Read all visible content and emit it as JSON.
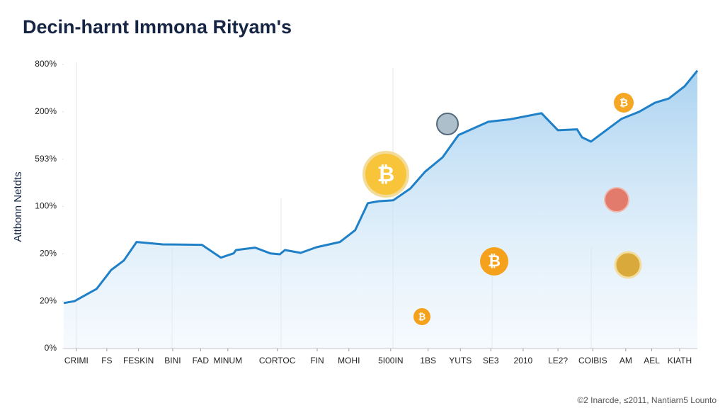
{
  "chart_data": {
    "type": "area",
    "title": "Decin-harnt Immona Rityam's",
    "y_label": "Attbonn Netdts",
    "footer": "©2 Inarcde, ≤2011, Nantiarn5 Lounto",
    "color": "#1f80c8",
    "xlim": [
      0,
      100
    ],
    "ylim": [
      0,
      6
    ],
    "xticks": [
      {
        "value": 2,
        "label": "CRIMI"
      },
      {
        "value": 6.8,
        "label": "FS"
      },
      {
        "value": 11.8,
        "label": "FESKIN"
      },
      {
        "value": 17.2,
        "label": "BINI"
      },
      {
        "value": 21.6,
        "label": "FAD"
      },
      {
        "value": 25.9,
        "label": "MINUM"
      },
      {
        "value": 33.7,
        "label": "CORTOC"
      },
      {
        "value": 40,
        "label": "FIN"
      },
      {
        "value": 45,
        "label": "MOHI"
      },
      {
        "value": 51.6,
        "label": "5I00IN"
      },
      {
        "value": 57.5,
        "label": "1BS"
      },
      {
        "value": 62.6,
        "label": "YUTS"
      },
      {
        "value": 67.4,
        "label": "SE3"
      },
      {
        "value": 72.5,
        "label": "2010"
      },
      {
        "value": 78,
        "label": "LE2?"
      },
      {
        "value": 83.5,
        "label": "COIBIS"
      },
      {
        "value": 88.7,
        "label": "AM"
      },
      {
        "value": 92.8,
        "label": "AEL"
      },
      {
        "value": 97.2,
        "label": "KIATH"
      }
    ],
    "yticks": [
      {
        "value": 0,
        "label": "0%"
      },
      {
        "value": 1,
        "label": "20%"
      },
      {
        "value": 2,
        "label": "20%"
      },
      {
        "value": 3,
        "label": "100%"
      },
      {
        "value": 4,
        "label": "593%"
      },
      {
        "value": 5,
        "label": "200%"
      },
      {
        "value": 6,
        "label": "800%"
      }
    ],
    "x": [
      0,
      1.7,
      5.2,
      7.5,
      9.5,
      11.5,
      15.6,
      21.8,
      24.8,
      26.8,
      27.2,
      30.2,
      32.6,
      34.1,
      34.9,
      37.4,
      39.9,
      43.6,
      46,
      48,
      49.7,
      52,
      54.7,
      57,
      59.8,
      62.3,
      67,
      70.4,
      75.4,
      78,
      81,
      81.8,
      83.2,
      85.8,
      88,
      90.8,
      93.3,
      95.5,
      98,
      100
    ],
    "values": [
      0.96,
      1.0,
      1.26,
      1.66,
      1.86,
      2.25,
      2.2,
      2.19,
      1.92,
      2.01,
      2.08,
      2.13,
      2.01,
      1.99,
      2.08,
      2.02,
      2.14,
      2.25,
      2.5,
      3.07,
      3.11,
      3.13,
      3.38,
      3.73,
      4.04,
      4.51,
      4.79,
      4.84,
      4.97,
      4.61,
      4.63,
      4.46,
      4.37,
      4.63,
      4.85,
      5.0,
      5.19,
      5.28,
      5.54,
      5.87
    ]
  }
}
